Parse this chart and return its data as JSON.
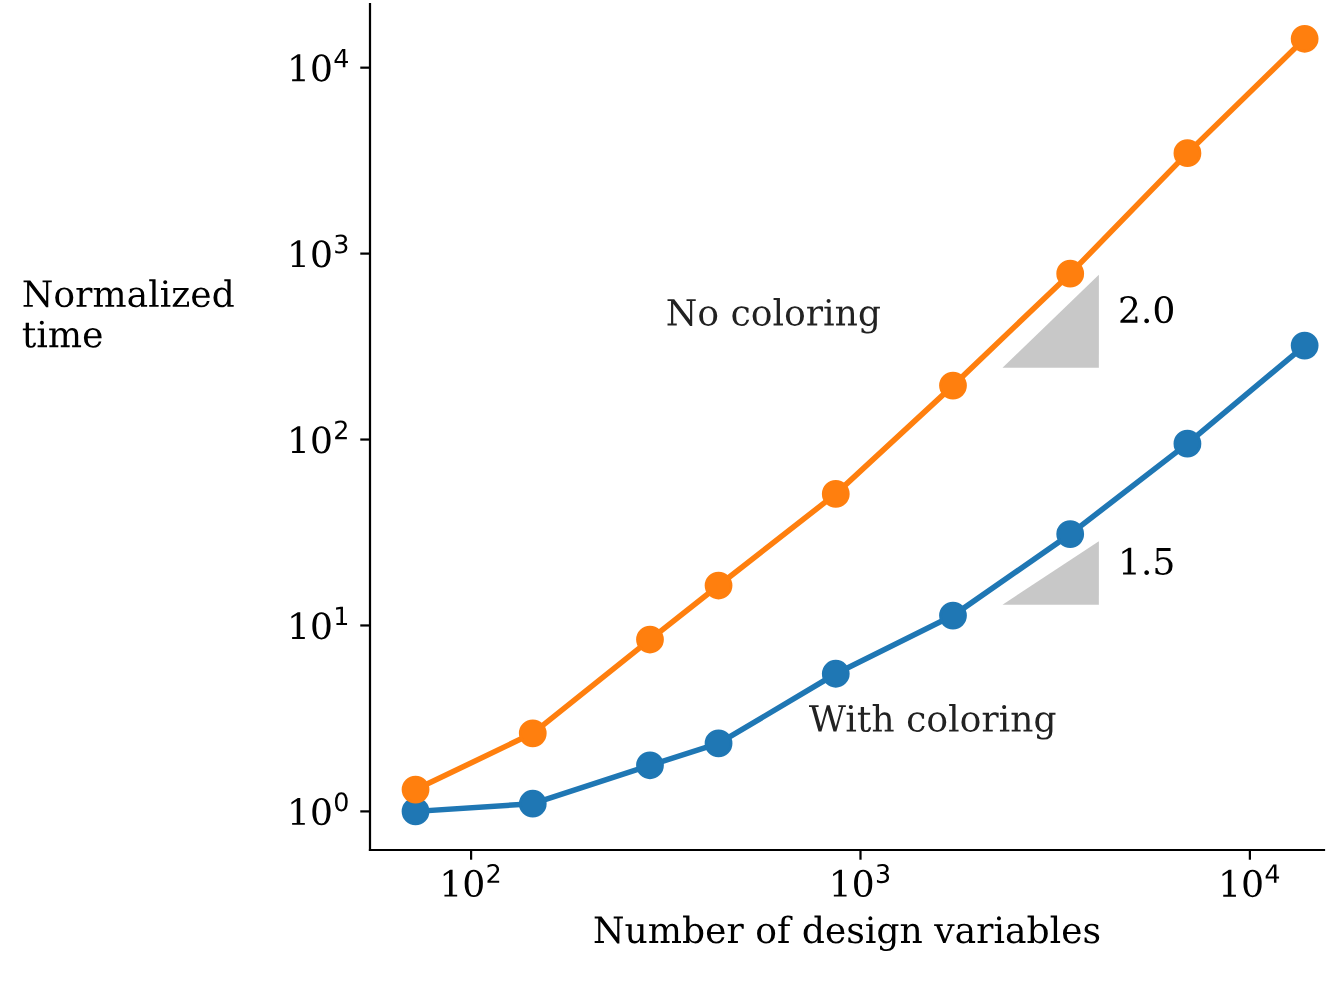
{
  "chart_data": {
    "type": "line",
    "xlabel": "Number of design variables",
    "ylabel": "Normalized\ntime",
    "x": [
      72,
      144,
      288,
      432,
      864,
      1728,
      3456,
      6912,
      13824
    ],
    "series": [
      {
        "name": "With coloring",
        "color": "#1f77b4",
        "values": [
          1.0,
          1.1,
          1.77,
          2.32,
          5.5,
          11.3,
          31,
          95,
          320
        ]
      },
      {
        "name": "No coloring",
        "color": "#ff7f0e",
        "values": [
          1.31,
          2.63,
          8.4,
          16.4,
          51,
          195,
          780,
          3470,
          14300
        ]
      }
    ],
    "log": "xy",
    "xlim": [
      55,
      15500
    ],
    "ylim": [
      0.62,
      22000
    ],
    "xticks": [
      {
        "value": 100,
        "label": "10$^{2}$"
      },
      {
        "value": 1000,
        "label": "10$^{3}$"
      },
      {
        "value": 10000,
        "label": "10$^{4}$"
      }
    ],
    "yticks": [
      {
        "value": 1,
        "label": "10$^{0}$"
      },
      {
        "value": 10,
        "label": "10$^{1}$"
      },
      {
        "value": 100,
        "label": "10$^{2}$"
      },
      {
        "value": 1000,
        "label": "10$^{3}$"
      },
      {
        "value": 10000,
        "label": "10$^{4}$"
      }
    ],
    "annotations": [
      "2.0",
      "1.5"
    ],
    "marker": "circle",
    "line_style": "solid",
    "grid": false,
    "legend": false
  }
}
